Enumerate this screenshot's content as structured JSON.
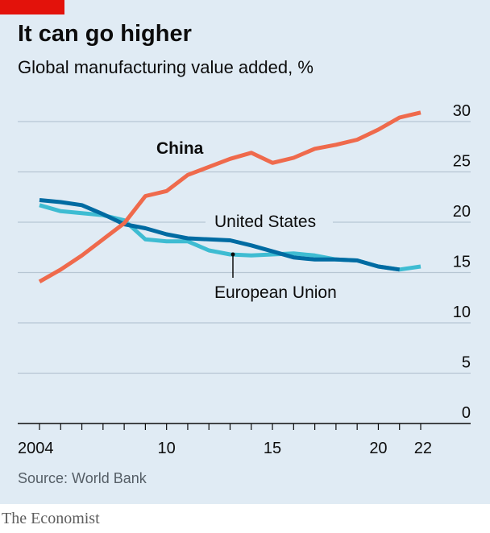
{
  "header": {
    "title": "It can go higher",
    "subtitle": "Global manufacturing value added, %"
  },
  "footer": {
    "source": "Source: World Bank",
    "brand": "The Economist"
  },
  "colors": {
    "background": "#e0ebf4",
    "accent": "#e3120b",
    "china": "#ef6a4c",
    "united_states": "#006ba2",
    "european_union": "#3ebcd2",
    "grid": "#b7c6d3"
  },
  "chart_data": {
    "type": "line",
    "title": "It can go higher",
    "subtitle": "Global manufacturing value added, %",
    "xlabel": "",
    "ylabel": "",
    "xlim": [
      2004,
      2022
    ],
    "ylim": [
      0,
      30
    ],
    "yticks": [
      0,
      5,
      10,
      15,
      20,
      25,
      30
    ],
    "xticks": [
      2004,
      2010,
      2015,
      2020,
      2022
    ],
    "xtick_labels": [
      "2004",
      "10",
      "15",
      "20",
      "22"
    ],
    "grid": true,
    "series": [
      {
        "name": "China",
        "color": "#ef6a4c",
        "x": [
          2004,
          2005,
          2006,
          2007,
          2008,
          2009,
          2010,
          2011,
          2012,
          2013,
          2014,
          2015,
          2016,
          2017,
          2018,
          2019,
          2020,
          2021,
          2022
        ],
        "values": [
          14.1,
          15.3,
          16.7,
          18.3,
          19.9,
          22.6,
          23.1,
          24.7,
          25.5,
          26.3,
          26.9,
          25.9,
          26.4,
          27.3,
          27.7,
          28.2,
          29.2,
          30.4,
          30.9
        ]
      },
      {
        "name": "United States",
        "color": "#3ebcd2",
        "x": [
          2004,
          2005,
          2006,
          2007,
          2008,
          2009,
          2010,
          2011,
          2012,
          2013,
          2014,
          2015,
          2016,
          2017,
          2018,
          2019,
          2020,
          2021,
          2022
        ],
        "values": [
          21.7,
          21.1,
          20.9,
          20.7,
          20.2,
          18.3,
          18.1,
          18.1,
          17.2,
          16.8,
          16.7,
          16.8,
          16.9,
          16.7,
          16.3,
          16.2,
          15.6,
          15.3,
          15.6
        ]
      },
      {
        "name": "European Union",
        "color": "#006ba2",
        "x": [
          2004,
          2005,
          2006,
          2007,
          2008,
          2009,
          2010,
          2011,
          2012,
          2013,
          2014,
          2015,
          2016,
          2017,
          2018,
          2019,
          2020,
          2021
        ],
        "values": [
          22.2,
          22.0,
          21.7,
          20.8,
          19.8,
          19.4,
          18.8,
          18.4,
          18.3,
          18.2,
          17.7,
          17.1,
          16.5,
          16.3,
          16.3,
          16.2,
          15.6,
          15.3
        ]
      }
    ]
  }
}
